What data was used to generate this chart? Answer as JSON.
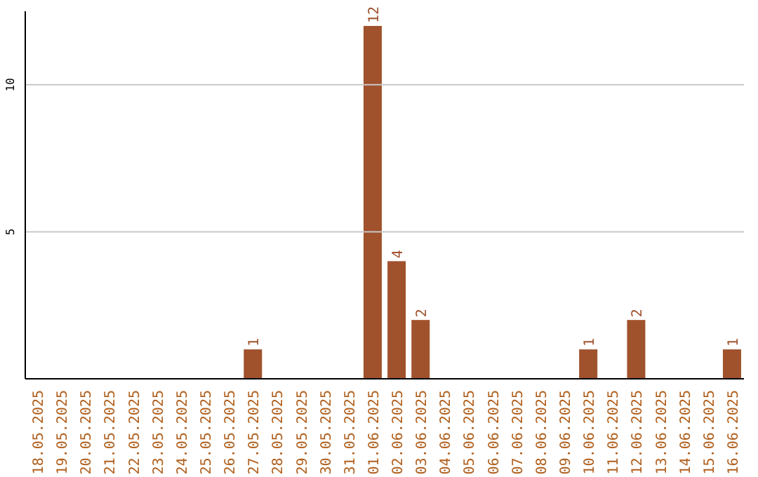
{
  "chart_data": {
    "type": "bar",
    "categories": [
      "18.05.2025",
      "19.05.2025",
      "20.05.2025",
      "21.05.2025",
      "22.05.2025",
      "23.05.2025",
      "24.05.2025",
      "25.05.2025",
      "26.05.2025",
      "27.05.2025",
      "28.05.2025",
      "29.05.2025",
      "30.05.2025",
      "31.05.2025",
      "01.06.2025",
      "02.06.2025",
      "03.06.2025",
      "04.06.2025",
      "05.06.2025",
      "06.06.2025",
      "07.06.2025",
      "08.06.2025",
      "09.06.2025",
      "10.06.2025",
      "11.06.2025",
      "12.06.2025",
      "13.06.2025",
      "14.06.2025",
      "15.06.2025",
      "16.06.2025"
    ],
    "values": [
      0,
      0,
      0,
      0,
      0,
      0,
      0,
      0,
      0,
      1,
      0,
      0,
      0,
      0,
      12,
      4,
      2,
      0,
      0,
      0,
      0,
      0,
      0,
      1,
      0,
      2,
      0,
      0,
      0,
      1
    ],
    "value_labels": [
      null,
      null,
      null,
      null,
      null,
      null,
      null,
      null,
      null,
      "1",
      null,
      null,
      null,
      null,
      "12",
      "4",
      "2",
      null,
      null,
      null,
      null,
      null,
      null,
      "1",
      null,
      "2",
      null,
      null,
      null,
      "1"
    ],
    "color": "#a0522d",
    "ylim": [
      0,
      12.5
    ],
    "yticks": [
      5,
      10
    ],
    "grid": "y"
  }
}
